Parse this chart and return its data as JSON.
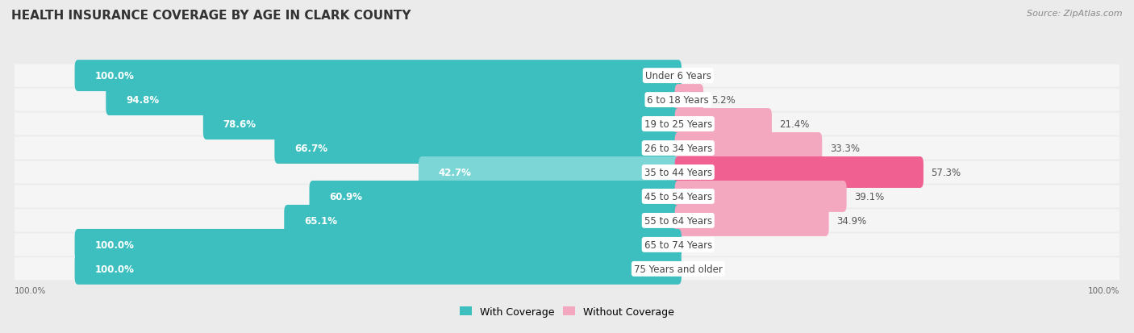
{
  "title": "HEALTH INSURANCE COVERAGE BY AGE IN CLARK COUNTY",
  "source": "Source: ZipAtlas.com",
  "categories": [
    "Under 6 Years",
    "6 to 18 Years",
    "19 to 25 Years",
    "26 to 34 Years",
    "35 to 44 Years",
    "45 to 54 Years",
    "55 to 64 Years",
    "65 to 74 Years",
    "75 Years and older"
  ],
  "with_coverage": [
    100.0,
    94.8,
    78.6,
    66.7,
    42.7,
    60.9,
    65.1,
    100.0,
    100.0
  ],
  "without_coverage": [
    0.0,
    5.2,
    21.4,
    33.3,
    57.3,
    39.1,
    34.9,
    0.0,
    0.0
  ],
  "color_with": "#3DBFBF",
  "color_with_light": "#7DD6D6",
  "color_without_strong": "#F06090",
  "color_without_light": "#F4A8C0",
  "bg_color": "#EBEBEB",
  "row_bg_color": "#F5F5F5",
  "title_fontsize": 11,
  "label_fontsize": 8.5,
  "source_fontsize": 8,
  "legend_fontsize": 9,
  "bar_value_fontsize": 8.5
}
